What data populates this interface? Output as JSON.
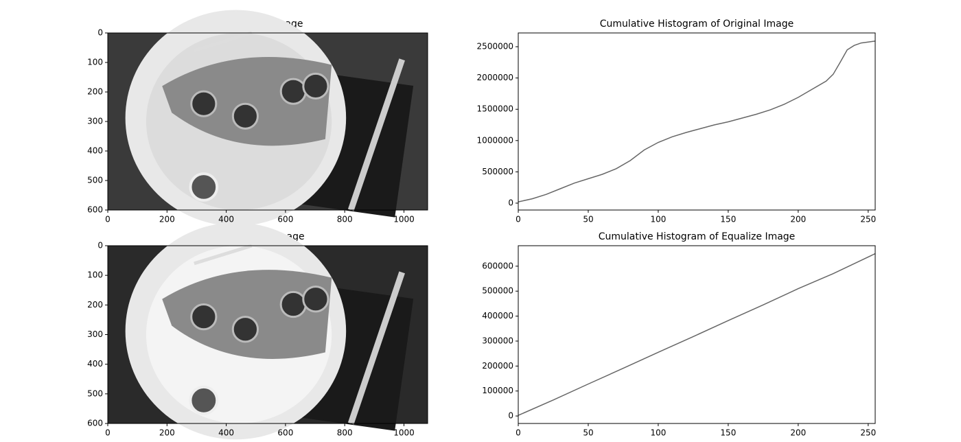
{
  "chart_data": [
    {
      "type": "image",
      "title": "Original Image",
      "xlim": [
        0,
        1080
      ],
      "ylim": [
        600,
        0
      ],
      "xticks": [
        0,
        200,
        400,
        600,
        800,
        1000
      ],
      "yticks": [
        0,
        100,
        200,
        300,
        400,
        500,
        600
      ]
    },
    {
      "type": "line",
      "title": "Cumulative Histogram of Original Image",
      "color": "#666666",
      "x": [
        0,
        10,
        20,
        30,
        40,
        50,
        60,
        70,
        80,
        90,
        100,
        110,
        120,
        130,
        140,
        150,
        160,
        170,
        180,
        190,
        200,
        210,
        220,
        225,
        230,
        235,
        240,
        245,
        250,
        255
      ],
      "values": [
        20000,
        70000,
        140000,
        230000,
        320000,
        390000,
        460000,
        550000,
        680000,
        850000,
        970000,
        1060000,
        1130000,
        1190000,
        1250000,
        1300000,
        1360000,
        1420000,
        1490000,
        1580000,
        1690000,
        1820000,
        1950000,
        2060000,
        2250000,
        2450000,
        2520000,
        2560000,
        2575000,
        2590000
      ],
      "xlim": [
        0,
        255
      ],
      "ylim": [
        -110000,
        2720000
      ],
      "xticks": [
        0,
        50,
        100,
        150,
        200,
        250
      ],
      "yticks": [
        0,
        500000,
        1000000,
        1500000,
        2000000,
        2500000
      ]
    },
    {
      "type": "image",
      "title": "Equalize Image",
      "xlim": [
        0,
        1080
      ],
      "ylim": [
        600,
        0
      ],
      "xticks": [
        0,
        200,
        400,
        600,
        800,
        1000
      ],
      "yticks": [
        0,
        100,
        200,
        300,
        400,
        500,
        600
      ]
    },
    {
      "type": "line",
      "title": "Cumulative Histogram of Equalize Image",
      "color": "#666666",
      "x": [
        0,
        25,
        50,
        75,
        100,
        125,
        150,
        175,
        200,
        225,
        255
      ],
      "values": [
        2500,
        64000,
        128000,
        191000,
        255000,
        318000,
        382000,
        445000,
        510000,
        570000,
        650000
      ],
      "xlim": [
        0,
        255
      ],
      "ylim": [
        -30000,
        682000
      ],
      "xticks": [
        0,
        50,
        100,
        150,
        200,
        250
      ],
      "yticks": [
        0,
        100000,
        200000,
        300000,
        400000,
        500000,
        600000
      ]
    }
  ]
}
